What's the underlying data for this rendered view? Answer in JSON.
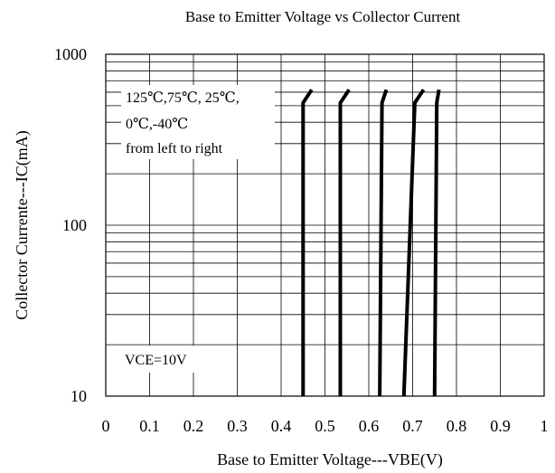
{
  "chart_data": {
    "type": "line",
    "title": "Base to Emitter Voltage vs Collector Current",
    "xlabel": "Base to Emitter Voltage---VBE(V)",
    "ylabel": "Collector Currente---IC(mA)",
    "xlim": [
      0,
      1
    ],
    "ylim": [
      10,
      1000
    ],
    "yscale": "log",
    "grid": true,
    "x_ticks": [
      "0",
      "0.1",
      "0.2",
      "0.3",
      "0.4",
      "0.5",
      "0.6",
      "0.7",
      "0.8",
      "0.9",
      "1"
    ],
    "y_ticks": [
      "10",
      "100",
      "1000"
    ],
    "annotations": [
      "125℃,75℃, 25℃,",
      "0℃,-40℃",
      "from left to right",
      "VCE=10V"
    ],
    "series": [
      {
        "x": [
          0.45,
          0.45,
          0.47
        ],
        "y": [
          10,
          520,
          620
        ]
      },
      {
        "x": [
          0.535,
          0.535,
          0.555
        ],
        "y": [
          10,
          520,
          620
        ]
      },
      {
        "x": [
          0.625,
          0.63,
          0.64
        ],
        "y": [
          10,
          520,
          620
        ]
      },
      {
        "x": [
          0.68,
          0.705,
          0.725
        ],
        "y": [
          10,
          520,
          620
        ]
      },
      {
        "x": [
          0.75,
          0.755,
          0.76
        ],
        "y": [
          10,
          520,
          620
        ]
      }
    ]
  }
}
